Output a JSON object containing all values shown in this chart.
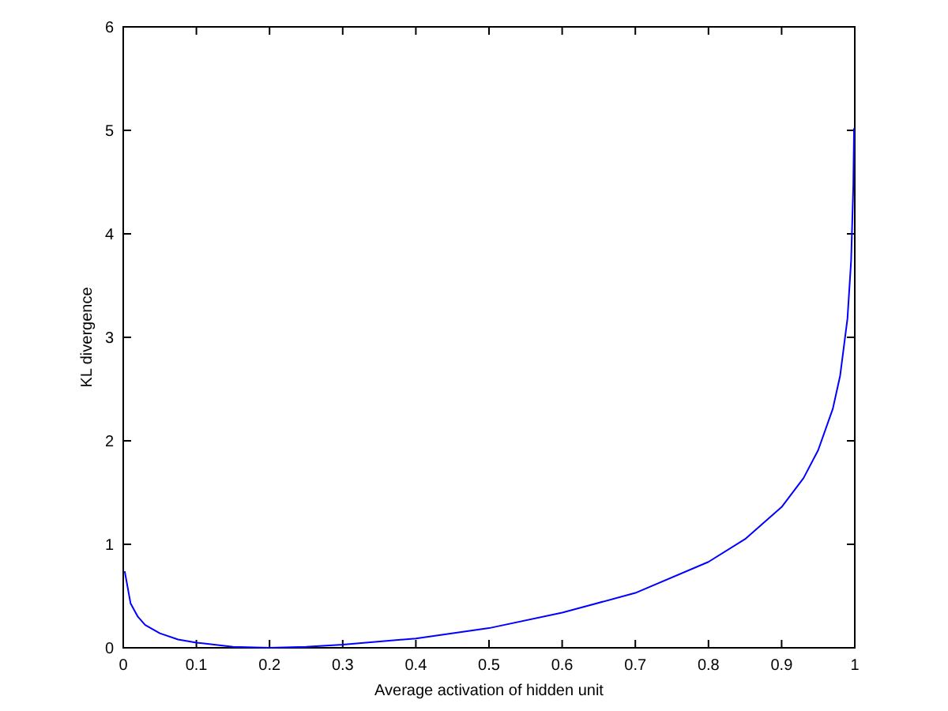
{
  "chart_data": {
    "type": "line",
    "xlabel": "Average activation of hidden unit",
    "ylabel": "KL divergence",
    "x": [
      0.002,
      0.01,
      0.02,
      0.03,
      0.05,
      0.075,
      0.1,
      0.15,
      0.2,
      0.25,
      0.3,
      0.4,
      0.5,
      0.6,
      0.7,
      0.8,
      0.85,
      0.9,
      0.93,
      0.95,
      0.97,
      0.98,
      0.99,
      0.995,
      0.998,
      0.999
    ],
    "series": [
      {
        "color": "#0000ff",
        "values": [
          0.74,
          0.43,
          0.3,
          0.22,
          0.14,
          0.08,
          0.05,
          0.01,
          0,
          0.01,
          0.03,
          0.09,
          0.19,
          0.34,
          0.53,
          0.83,
          1.05,
          1.36,
          1.64,
          1.91,
          2.31,
          2.63,
          3.18,
          3.74,
          4.47,
          5.02
        ]
      }
    ],
    "xlim": [
      0,
      1
    ],
    "ylim": [
      0,
      6
    ],
    "xticks": [
      0,
      0.1,
      0.2,
      0.3,
      0.4,
      0.5,
      0.6,
      0.7,
      0.8,
      0.9,
      1
    ],
    "yticks": [
      0,
      1,
      2,
      3,
      4,
      5,
      6
    ],
    "grid": false,
    "marker": "none",
    "line_style": "solid"
  }
}
